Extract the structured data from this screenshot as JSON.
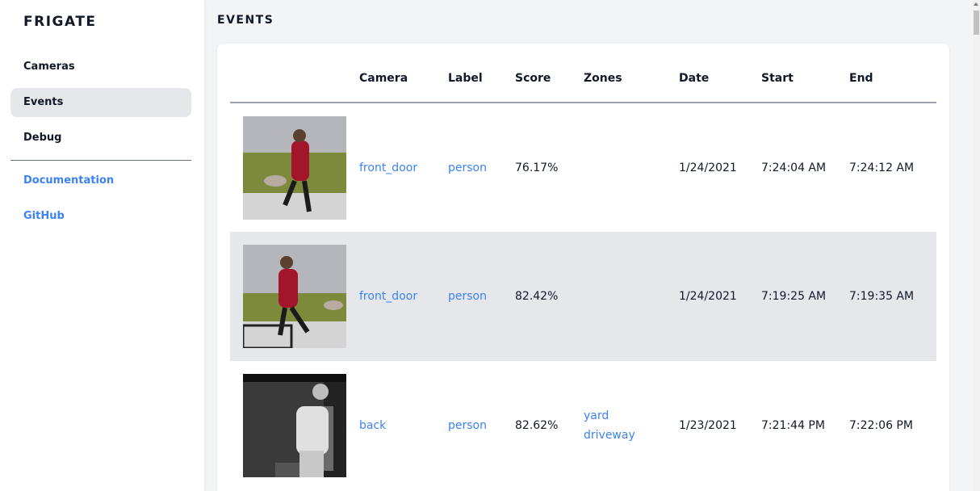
{
  "sidebar": {
    "brand": "FRIGATE",
    "items": [
      {
        "label": "Cameras"
      },
      {
        "label": "Events",
        "active": true
      },
      {
        "label": "Debug"
      }
    ],
    "links": [
      {
        "label": "Documentation"
      },
      {
        "label": "GitHub"
      }
    ]
  },
  "main": {
    "title": "EVENTS",
    "columns": [
      "",
      "Camera",
      "Label",
      "Score",
      "Zones",
      "Date",
      "Start",
      "End"
    ],
    "rows": [
      {
        "camera": "front_door",
        "label": "person",
        "score": "76.17%",
        "zones": [
          "",
          ""
        ],
        "date": "1/24/2021",
        "start": "7:24:04 AM",
        "end": "7:24:12 AM"
      },
      {
        "camera": "front_door",
        "label": "person",
        "score": "82.42%",
        "zones": [
          "",
          ""
        ],
        "date": "1/24/2021",
        "start": "7:19:25 AM",
        "end": "7:19:35 AM"
      },
      {
        "camera": "back",
        "label": "person",
        "score": "82.62%",
        "zones": [
          "yard",
          "driveway"
        ],
        "date": "1/23/2021",
        "start": "7:21:44 PM",
        "end": "7:22:06 PM"
      }
    ]
  },
  "colors": {
    "accent": "#3b82f6",
    "active_bg": "#e5e7eb",
    "page_bg": "#f3f4f6"
  }
}
